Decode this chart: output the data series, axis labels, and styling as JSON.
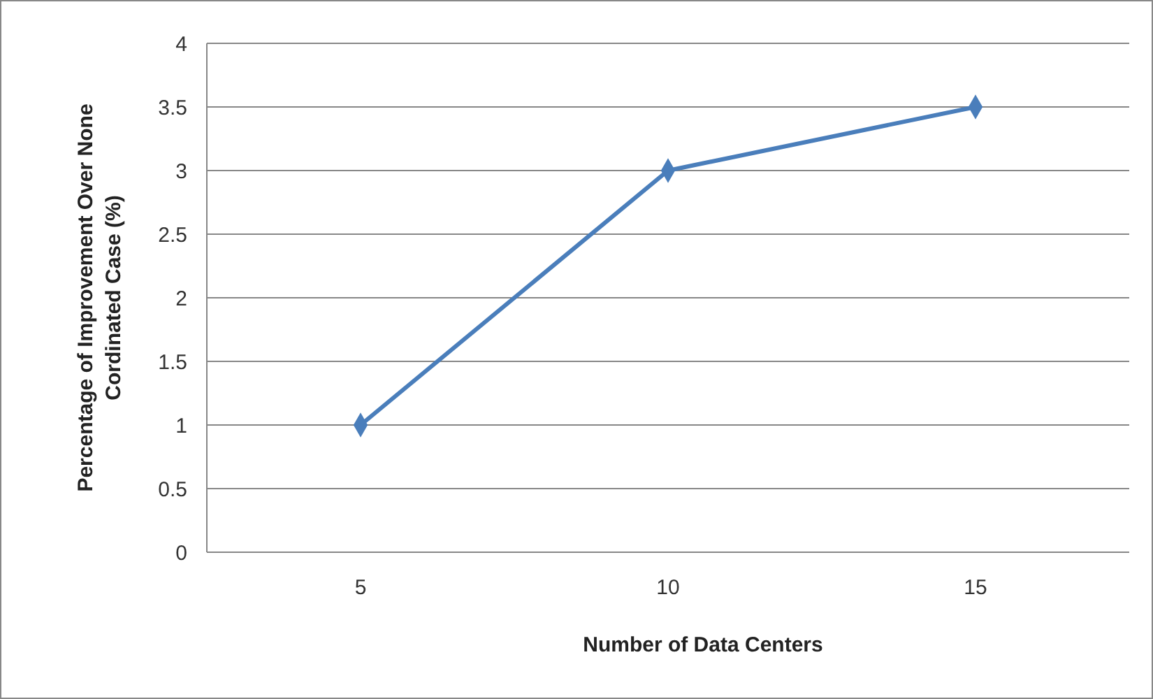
{
  "chart_data": {
    "type": "line",
    "xlabel": "Number of Data Centers",
    "ylabel": "Percentage of Improvement Over None Cordinated Case (%)",
    "categories": [
      "5",
      "10",
      "15"
    ],
    "series": [
      {
        "color": "#4a7ebb",
        "values": [
          1,
          3,
          3.5
        ]
      }
    ],
    "ylim": [
      0,
      4
    ],
    "yticks": [
      0,
      0.5,
      1,
      1.5,
      2,
      2.5,
      3,
      3.5,
      4
    ],
    "grid": "y",
    "marker": "diamond"
  }
}
